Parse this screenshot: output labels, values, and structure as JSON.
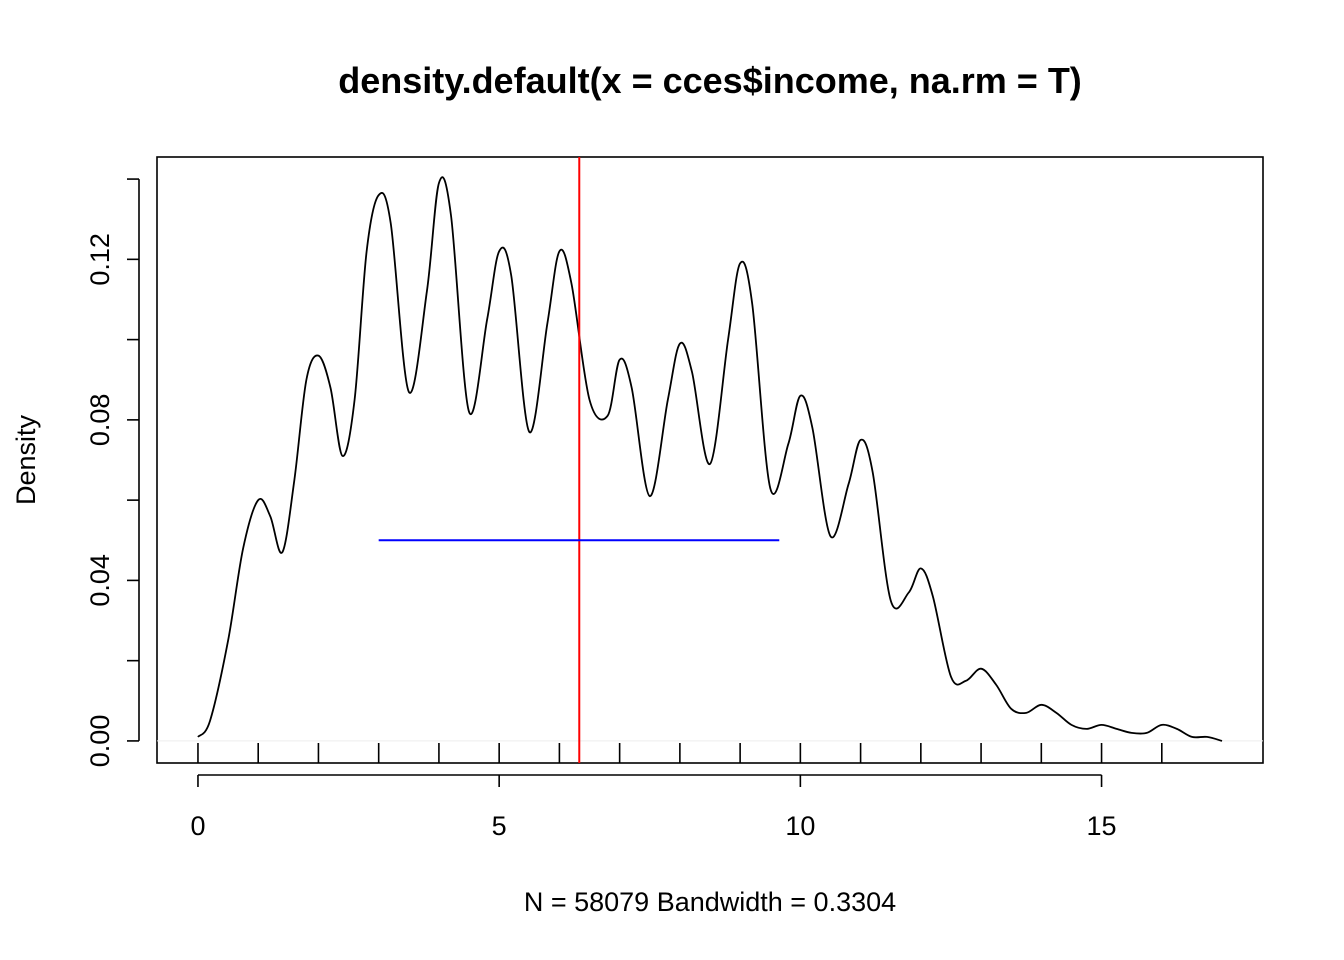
{
  "chart_data": {
    "type": "line",
    "title": "density.default(x = cces$income, na.rm = T)",
    "xlabel": "N = 58079   Bandwidth = 0.3304",
    "ylabel": "Density",
    "xlim": [
      -0.68,
      17.68
    ],
    "ylim": [
      -0.0055,
      0.1455
    ],
    "x_ticks": [
      0,
      5,
      10,
      15
    ],
    "x_tick_labels": [
      "0",
      "5",
      "10",
      "15"
    ],
    "x_minor_ticks": [
      1,
      2,
      3,
      4,
      6,
      7,
      8,
      9,
      11,
      12,
      13,
      14,
      16
    ],
    "y_ticks": [
      0.0,
      0.02,
      0.04,
      0.06,
      0.08,
      0.1,
      0.12,
      0.14
    ],
    "y_tick_labels": [
      "0.00",
      "",
      "0.04",
      "",
      "0.08",
      "",
      "0.12",
      ""
    ],
    "grid": false,
    "series": [
      {
        "color": "#000000",
        "x": [
          0,
          0.2,
          0.5,
          0.75,
          1.0,
          1.2,
          1.4,
          1.6,
          1.8,
          2.0,
          2.2,
          2.4,
          2.6,
          2.8,
          3.0,
          3.2,
          3.5,
          3.8,
          4.0,
          4.2,
          4.5,
          4.8,
          5.0,
          5.2,
          5.5,
          5.8,
          6.0,
          6.2,
          6.5,
          6.8,
          7.0,
          7.2,
          7.5,
          7.8,
          8.0,
          8.2,
          8.5,
          8.8,
          9.0,
          9.2,
          9.5,
          9.8,
          10.0,
          10.2,
          10.5,
          10.8,
          11.0,
          11.2,
          11.5,
          11.8,
          12.0,
          12.2,
          12.5,
          12.75,
          13.0,
          13.25,
          13.5,
          13.75,
          14.0,
          14.25,
          14.5,
          14.75,
          15.0,
          15.25,
          15.5,
          15.75,
          16.0,
          16.25,
          16.5,
          16.75,
          17.0
        ],
        "y": [
          0.001,
          0.005,
          0.025,
          0.048,
          0.06,
          0.056,
          0.047,
          0.065,
          0.09,
          0.096,
          0.088,
          0.071,
          0.085,
          0.122,
          0.136,
          0.129,
          0.087,
          0.112,
          0.139,
          0.131,
          0.082,
          0.105,
          0.122,
          0.116,
          0.077,
          0.104,
          0.122,
          0.114,
          0.085,
          0.081,
          0.095,
          0.088,
          0.061,
          0.085,
          0.099,
          0.092,
          0.069,
          0.1,
          0.119,
          0.109,
          0.063,
          0.074,
          0.086,
          0.078,
          0.051,
          0.064,
          0.075,
          0.067,
          0.035,
          0.037,
          0.043,
          0.036,
          0.016,
          0.015,
          0.018,
          0.014,
          0.008,
          0.007,
          0.009,
          0.007,
          0.004,
          0.003,
          0.004,
          0.003,
          0.002,
          0.002,
          0.004,
          0.003,
          0.001,
          0.001,
          0.0
        ]
      }
    ],
    "annotations": [
      {
        "type": "vline",
        "x": 6.33,
        "color": "#ff0000"
      },
      {
        "type": "hsegment",
        "x0": 3.0,
        "x1": 9.65,
        "y": 0.05,
        "color": "#0000ff"
      },
      {
        "type": "hline",
        "y": 0.0,
        "color": "#eeeeee"
      }
    ]
  }
}
